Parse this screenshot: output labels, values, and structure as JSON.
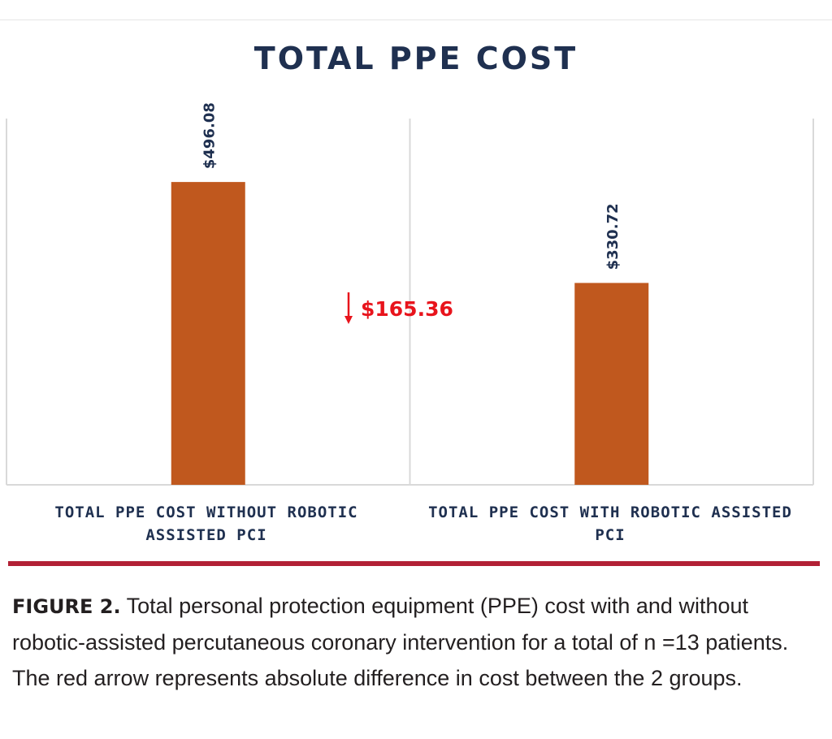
{
  "chart_data": {
    "type": "bar",
    "title": "TOTAL PPE COST",
    "categories": [
      "TOTAL PPE COST WITHOUT ROBOTIC ASSISTED PCI",
      "TOTAL PPE COST WITH ROBOTIC ASSISTED PCI"
    ],
    "values": [
      496.08,
      330.72
    ],
    "data_labels": [
      "$496.08",
      "$330.72"
    ],
    "annotation": {
      "text": "$165.36",
      "icon": "down-arrow-icon",
      "color": "#e8141c"
    },
    "bar_color": "#c0581e",
    "ylim": [
      0,
      600
    ],
    "grid": false,
    "legend": "none"
  },
  "caption": {
    "lead": "FIGURE 2.",
    "text": "Total personal protection equipment (PPE) cost with and without robotic-assisted percutaneous coronary intervention for a total of  n =13 patients. The red arrow represents absolute difference in cost between the 2 groups."
  },
  "colors": {
    "title": "#1f3050",
    "rule": "#b22035",
    "axis": "#d9d9d9"
  }
}
